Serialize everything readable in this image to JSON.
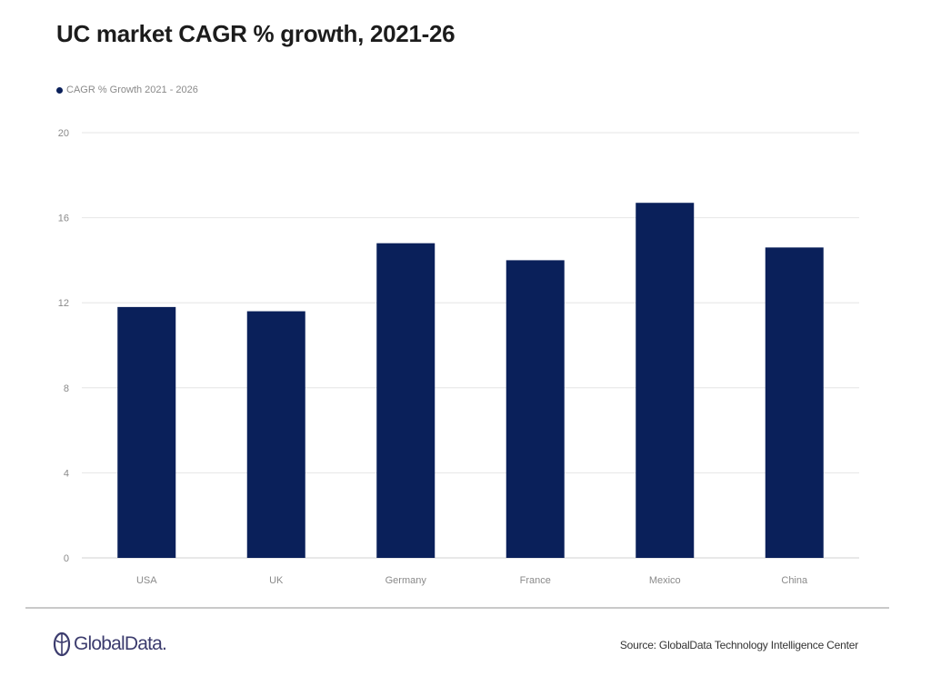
{
  "chart_data": {
    "type": "bar",
    "title": "UC market CAGR % growth, 2021-26",
    "xlabel": "",
    "ylabel": "",
    "categories": [
      "USA",
      "UK",
      "Germany",
      "France",
      "Mexico",
      "China"
    ],
    "series": [
      {
        "name": "CAGR % Growth 2021 - 2026",
        "values": [
          11.8,
          11.6,
          14.8,
          14.0,
          16.7,
          14.6
        ],
        "color": "#0a205a"
      }
    ],
    "ylim": [
      0,
      20
    ],
    "yticks": [
      0,
      4,
      8,
      12,
      16,
      20
    ],
    "grid": true,
    "legend_position": "top-left"
  },
  "footer": {
    "logo_text": "GlobalData.",
    "source": "Source: GlobalData Technology Intelligence Center"
  },
  "colors": {
    "bar": "#0a205a",
    "grid": "#e6e6e6",
    "logo": "#3c3c6e"
  }
}
